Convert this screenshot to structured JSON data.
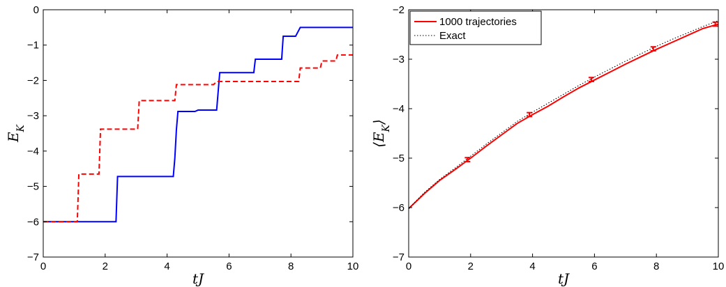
{
  "chart_data": [
    {
      "type": "line",
      "xlabel": "tJ",
      "ylabel": "E_K",
      "xlim": [
        0,
        10
      ],
      "ylim": [
        -7,
        0
      ],
      "xticks": [
        0,
        2,
        4,
        6,
        8,
        10
      ],
      "yticks": [
        0,
        -1,
        -2,
        -3,
        -4,
        -5,
        -6,
        -7
      ],
      "xtick_labels": [
        "0",
        "2",
        "4",
        "6",
        "8",
        "10"
      ],
      "ytick_labels": [
        "0",
        "−1",
        "−2",
        "−3",
        "−4",
        "−5",
        "−6",
        "−7"
      ],
      "series": [
        {
          "style": "solid",
          "color": "#0000ff",
          "x": [
            0,
            2.35,
            2.4,
            4.2,
            4.25,
            4.3,
            4.35,
            4.9,
            5.0,
            5.6,
            5.7,
            6.8,
            6.85,
            7.7,
            7.75,
            8.15,
            8.3,
            10
          ],
          "y": [
            -6.0,
            -6.0,
            -4.72,
            -4.72,
            -4.2,
            -3.4,
            -2.88,
            -2.88,
            -2.84,
            -2.84,
            -1.78,
            -1.78,
            -1.4,
            -1.4,
            -0.75,
            -0.75,
            -0.5,
            -0.5
          ]
        },
        {
          "style": "dashed",
          "color": "#ff0000",
          "x": [
            0,
            1.1,
            1.15,
            1.8,
            1.85,
            3.05,
            3.1,
            4.25,
            4.3,
            5.5,
            5.6,
            8.25,
            8.3,
            8.95,
            9.0,
            9.45,
            9.5,
            10
          ],
          "y": [
            -6.0,
            -6.0,
            -4.65,
            -4.65,
            -3.38,
            -3.38,
            -2.57,
            -2.57,
            -2.12,
            -2.12,
            -2.03,
            -2.03,
            -1.65,
            -1.65,
            -1.45,
            -1.45,
            -1.28,
            -1.28
          ]
        }
      ]
    },
    {
      "type": "line",
      "xlabel": "tJ",
      "ylabel": "⟨E_K⟩",
      "xlim": [
        0,
        10
      ],
      "ylim": [
        -7,
        -2
      ],
      "xticks": [
        0,
        2,
        4,
        6,
        8,
        10
      ],
      "yticks": [
        -2,
        -3,
        -4,
        -5,
        -6,
        -7
      ],
      "xtick_labels": [
        "0",
        "2",
        "4",
        "6",
        "8",
        "10"
      ],
      "ytick_labels": [
        "−2",
        "−3",
        "−4",
        "−5",
        "−6",
        "−7"
      ],
      "legend_position": "top-left",
      "series": [
        {
          "name": "1000 trajectories",
          "style": "solid",
          "color": "#ff0000",
          "x": [
            0,
            0.5,
            1,
            1.5,
            2,
            2.5,
            3,
            3.5,
            4,
            4.5,
            5,
            5.5,
            6,
            6.5,
            7,
            7.5,
            8,
            8.5,
            9,
            9.5,
            10
          ],
          "y": [
            -6.02,
            -5.72,
            -5.45,
            -5.23,
            -5.0,
            -4.76,
            -4.53,
            -4.3,
            -4.12,
            -3.95,
            -3.76,
            -3.58,
            -3.42,
            -3.26,
            -3.1,
            -2.95,
            -2.8,
            -2.66,
            -2.52,
            -2.38,
            -2.29
          ],
          "errorbars": [
            {
              "x": 1.9,
              "y": -5.03,
              "err": 0.04
            },
            {
              "x": 3.9,
              "y": -4.12,
              "err": 0.04
            },
            {
              "x": 5.9,
              "y": -3.41,
              "err": 0.04
            },
            {
              "x": 7.9,
              "y": -2.79,
              "err": 0.04
            },
            {
              "x": 9.9,
              "y": -2.29,
              "err": 0.04
            }
          ]
        },
        {
          "name": "Exact",
          "style": "dotted",
          "color": "#000000",
          "x": [
            0,
            0.5,
            1,
            1.5,
            2,
            2.5,
            3,
            3.5,
            4,
            4.5,
            5,
            5.5,
            6,
            6.5,
            7,
            7.5,
            8,
            8.5,
            9,
            9.5,
            10
          ],
          "y": [
            -6.02,
            -5.7,
            -5.43,
            -5.2,
            -4.96,
            -4.72,
            -4.49,
            -4.26,
            -4.07,
            -3.89,
            -3.71,
            -3.53,
            -3.36,
            -3.2,
            -3.04,
            -2.89,
            -2.74,
            -2.6,
            -2.47,
            -2.34,
            -2.22
          ]
        }
      ]
    }
  ]
}
